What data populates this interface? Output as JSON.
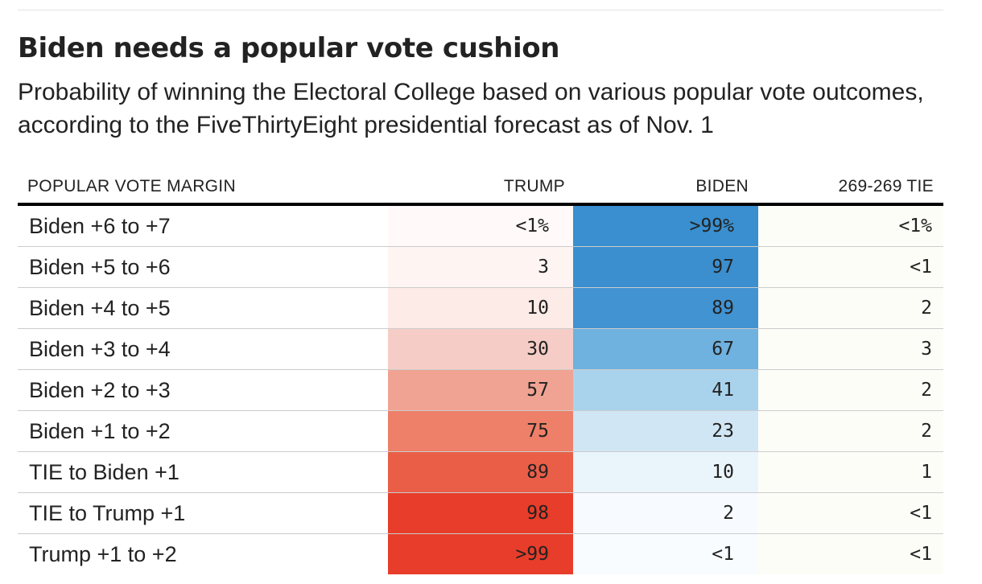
{
  "chart_data": {
    "type": "table",
    "title": "Biden needs a popular vote cushion",
    "subtitle": "Probability of winning the Electoral College based on various popular vote outcomes, according to the FiveThirtyEight presidential forecast as of Nov. 1",
    "columns": [
      "POPULAR VOTE MARGIN",
      "TRUMP",
      "BIDEN",
      "269-269 TIE"
    ],
    "rows": [
      {
        "label": "Biden +6 to +7",
        "trump": "<1%",
        "biden": ">99%",
        "tie": "<1%",
        "trump_value": 0.5,
        "biden_value": 99.5,
        "tie_value": 0.5
      },
      {
        "label": "Biden +5 to +6",
        "trump": "3",
        "biden": "97",
        "tie": "<1",
        "trump_value": 3,
        "biden_value": 97,
        "tie_value": 0.5
      },
      {
        "label": "Biden +4 to +5",
        "trump": "10",
        "biden": "89",
        "tie": "2",
        "trump_value": 10,
        "biden_value": 89,
        "tie_value": 2
      },
      {
        "label": "Biden +3 to +4",
        "trump": "30",
        "biden": "67",
        "tie": "3",
        "trump_value": 30,
        "biden_value": 67,
        "tie_value": 3
      },
      {
        "label": "Biden +2 to +3",
        "trump": "57",
        "biden": "41",
        "tie": "2",
        "trump_value": 57,
        "biden_value": 41,
        "tie_value": 2
      },
      {
        "label": "Biden +1 to +2",
        "trump": "75",
        "biden": "23",
        "tie": "2",
        "trump_value": 75,
        "biden_value": 23,
        "tie_value": 2
      },
      {
        "label": "TIE to Biden +1",
        "trump": "89",
        "biden": "10",
        "tie": "1",
        "trump_value": 89,
        "biden_value": 10,
        "tie_value": 1
      },
      {
        "label": "TIE to Trump +1",
        "trump": "98",
        "biden": "2",
        "tie": "<1",
        "trump_value": 98,
        "biden_value": 2,
        "tie_value": 0.5
      },
      {
        "label": "Trump +1 to +2",
        "trump": ">99",
        "biden": "<1",
        "tie": "<1",
        "trump_value": 99.5,
        "biden_value": 0.5,
        "tie_value": 0.5
      }
    ],
    "colors": {
      "trump_scale": [
        "#fffafa",
        "#fdece9",
        "#f5cdc6",
        "#f0a392",
        "#ee7f68",
        "#ea5e48",
        "#e83d2a"
      ],
      "biden_scale": [
        "#fafcff",
        "#eaf4fb",
        "#d0e6f5",
        "#a9d3ed",
        "#6fb1df",
        "#4293d2",
        "#398fcf"
      ],
      "tie_tint": "#fdfdf8"
    }
  }
}
